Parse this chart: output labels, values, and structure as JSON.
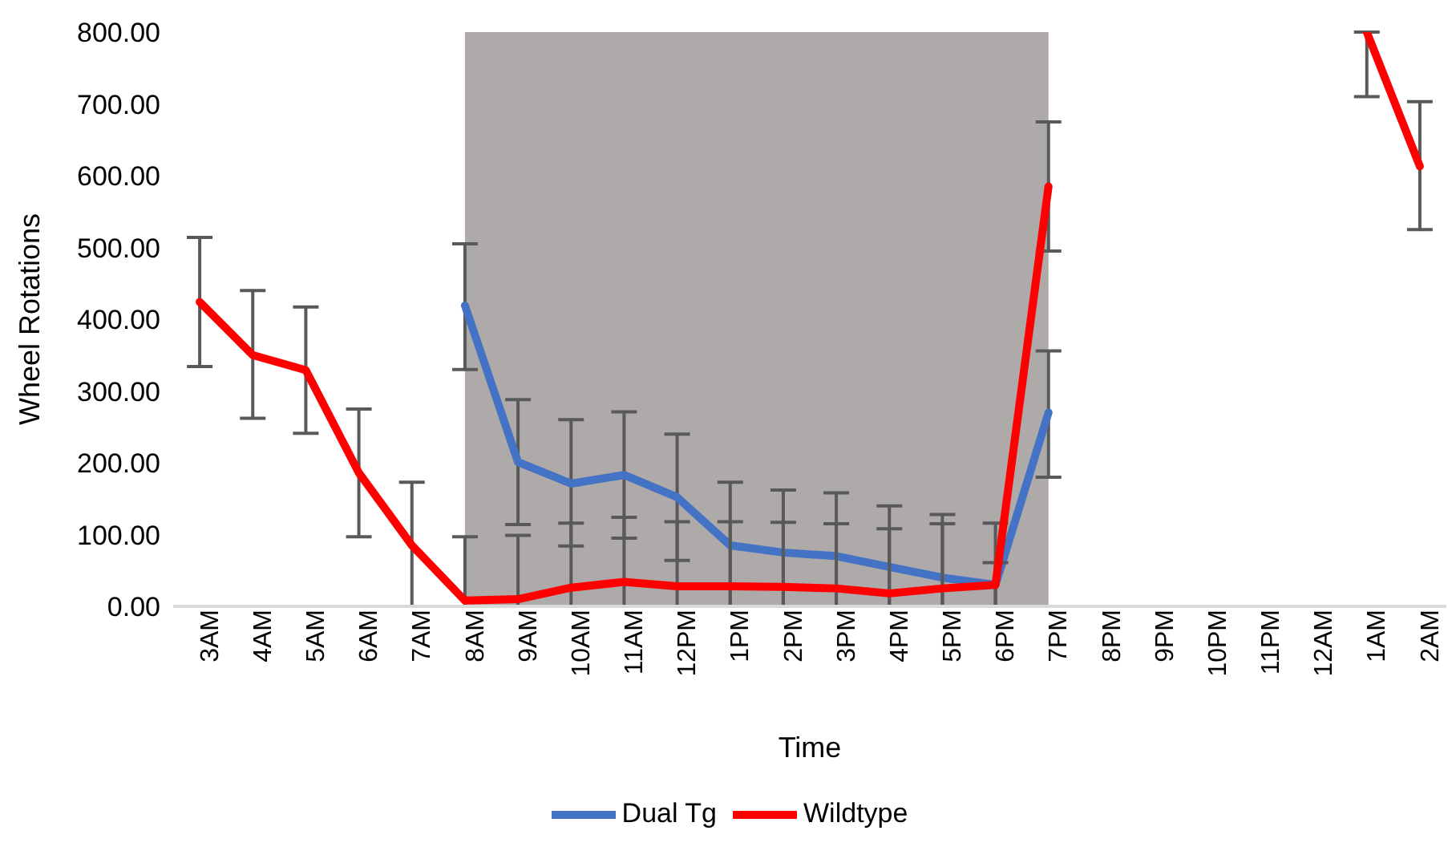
{
  "chart_data": {
    "type": "line",
    "xlabel": "Time",
    "ylabel": "Wheel Rotations",
    "categories": [
      "3AM",
      "4AM",
      "5AM",
      "6AM",
      "7AM",
      "8AM",
      "9AM",
      "10AM",
      "11AM",
      "12PM",
      "1PM",
      "2PM",
      "3PM",
      "4PM",
      "5PM",
      "6PM",
      "7PM",
      "8PM",
      "9PM",
      "10PM",
      "11PM",
      "12AM",
      "1AM",
      "2AM"
    ],
    "series": [
      {
        "name": "Dual Tg",
        "color": "#4472c4",
        "values": [
          null,
          null,
          null,
          null,
          null,
          419,
          201,
          171,
          183,
          152,
          85,
          75,
          70,
          55,
          40,
          30,
          270,
          null,
          null,
          null,
          null,
          null,
          null,
          null
        ],
        "errors": [
          null,
          null,
          null,
          null,
          null,
          [
            330,
            505
          ],
          [
            114,
            288
          ],
          [
            84,
            260
          ],
          [
            95,
            271
          ],
          [
            64,
            240
          ],
          [
            0,
            173
          ],
          [
            0,
            162
          ],
          [
            0,
            158
          ],
          [
            0,
            140
          ],
          [
            0,
            128
          ],
          [
            0,
            116
          ],
          [
            180,
            356
          ],
          null,
          null,
          null,
          null,
          null,
          null,
          null
        ]
      },
      {
        "name": "Wildtype",
        "color": "#ff0000",
        "values": [
          424,
          350,
          329,
          186,
          85,
          8,
          10,
          26,
          34,
          28,
          28,
          27,
          25,
          18,
          25,
          30,
          585,
          null,
          null,
          null,
          null,
          null,
          800,
          613
        ],
        "errors": [
          [
            334,
            514
          ],
          [
            262,
            440
          ],
          [
            241,
            417
          ],
          [
            97,
            275
          ],
          [
            0,
            173
          ],
          [
            0,
            97
          ],
          [
            0,
            99
          ],
          [
            0,
            116
          ],
          [
            0,
            124
          ],
          [
            0,
            118
          ],
          [
            0,
            118
          ],
          [
            0,
            117
          ],
          [
            0,
            115
          ],
          [
            0,
            108
          ],
          [
            0,
            115
          ],
          [
            0,
            61
          ],
          [
            495,
            675
          ],
          null,
          null,
          null,
          null,
          null,
          [
            710,
            800
          ],
          [
            525,
            703
          ]
        ]
      }
    ],
    "ylim": [
      0,
      800
    ],
    "yticks": [
      {
        "value": 0,
        "label": "0.00"
      },
      {
        "value": 100,
        "label": "100.00"
      },
      {
        "value": 200,
        "label": "200.00"
      },
      {
        "value": 300,
        "label": "300.00"
      },
      {
        "value": 400,
        "label": "400.00"
      },
      {
        "value": 500,
        "label": "500.00"
      },
      {
        "value": 600,
        "label": "600.00"
      },
      {
        "value": 700,
        "label": "700.00"
      },
      {
        "value": 800,
        "label": "800.00"
      }
    ],
    "bands": [
      {
        "axis": "x",
        "from": "8AM",
        "to": "7PM",
        "color": "#aeaaaa"
      }
    ],
    "grid": false,
    "legend": "bottom",
    "marker": "none",
    "line_style": "solid"
  }
}
